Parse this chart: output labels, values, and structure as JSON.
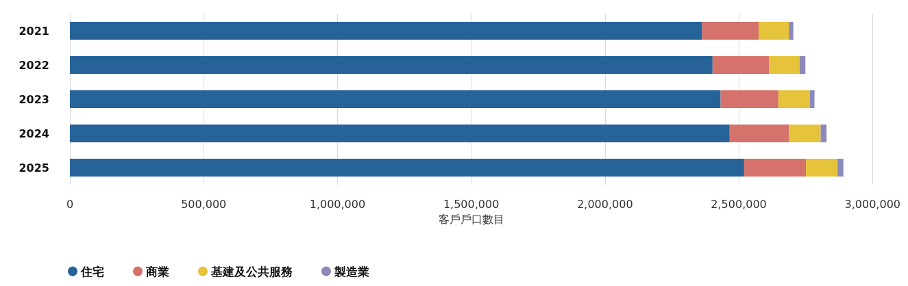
{
  "chart_data": {
    "type": "bar",
    "orientation": "horizontal",
    "stacked": true,
    "xlabel": "客戶戶口數目",
    "categories": [
      "2021",
      "2022",
      "2023",
      "2024",
      "2025"
    ],
    "series": [
      {
        "name": "住宅",
        "color": "#256399",
        "values": [
          2363000,
          2402000,
          2432000,
          2466000,
          2520000
        ]
      },
      {
        "name": "商業",
        "color": "#d5726b",
        "values": [
          211000,
          212000,
          216000,
          222000,
          231000
        ]
      },
      {
        "name": "基建及公共服務",
        "color": "#e5c43b",
        "values": [
          113000,
          113000,
          118000,
          118000,
          118000
        ]
      },
      {
        "name": "製造業",
        "color": "#8c89ba",
        "values": [
          17000,
          22000,
          17000,
          22000,
          22000
        ]
      }
    ],
    "xlim": [
      0,
      3000000
    ],
    "xticks": [
      {
        "value": 0,
        "label": "0"
      },
      {
        "value": 500000,
        "label": "500,000"
      },
      {
        "value": 1000000,
        "label": "1,000,000"
      },
      {
        "value": 1500000,
        "label": "1,500,000"
      },
      {
        "value": 2000000,
        "label": "2,000,000"
      },
      {
        "value": 2500000,
        "label": "2,500,000"
      },
      {
        "value": 3000000,
        "label": "3,000,000"
      }
    ],
    "grid": "x",
    "legend": "bottom left"
  }
}
